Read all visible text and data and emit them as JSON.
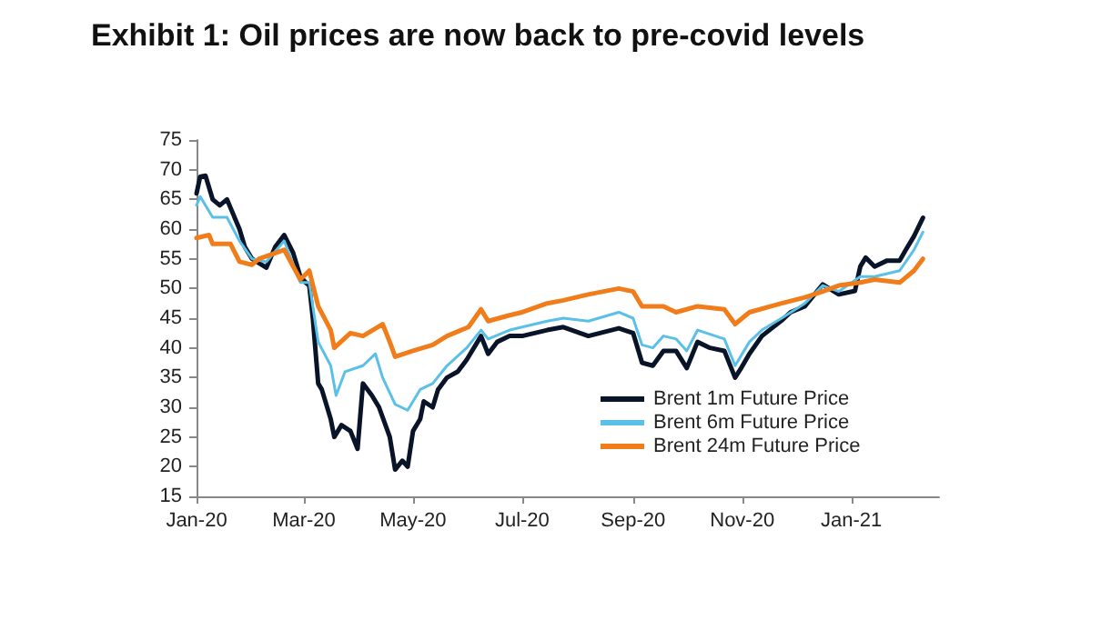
{
  "chart_data": {
    "type": "line",
    "title": "Exhibit 1: Oil prices are now back to pre-covid levels",
    "xlim": [
      "2020-01-01",
      "2021-02-19"
    ],
    "xticks": [
      {
        "value": "2020-01",
        "label": "Jan-20"
      },
      {
        "value": "2020-03",
        "label": "Mar-20"
      },
      {
        "value": "2020-05",
        "label": "May-20"
      },
      {
        "value": "2020-07",
        "label": "Jul-20"
      },
      {
        "value": "2020-09",
        "label": "Sep-20"
      },
      {
        "value": "2020-11",
        "label": "Nov-20"
      },
      {
        "value": "2021-01",
        "label": "Jan-21"
      }
    ],
    "ylim": [
      15,
      75
    ],
    "yticks": [
      15,
      20,
      25,
      30,
      35,
      40,
      45,
      50,
      55,
      60,
      65,
      70,
      75
    ],
    "grid": false,
    "legend": "bottom right",
    "marker": "none",
    "line_style": "solid",
    "series": [
      {
        "name": "Brent 1m Future Price",
        "color": "#0a1428",
        "x": [
          "2020-01-01",
          "2020-01-03",
          "2020-01-06",
          "2020-01-10",
          "2020-01-14",
          "2020-01-18",
          "2020-01-25",
          "2020-01-28",
          "2020-02-01",
          "2020-02-09",
          "2020-02-14",
          "2020-02-19",
          "2020-02-24",
          "2020-02-28",
          "2020-03-02",
          "2020-03-04",
          "2020-03-06",
          "2020-03-09",
          "2020-03-11",
          "2020-03-16",
          "2020-03-18",
          "2020-03-22",
          "2020-03-27",
          "2020-03-31",
          "2020-04-03",
          "2020-04-08",
          "2020-04-12",
          "2020-04-18",
          "2020-04-21",
          "2020-04-25",
          "2020-04-28",
          "2020-05-01",
          "2020-05-05",
          "2020-05-07",
          "2020-05-12",
          "2020-05-15",
          "2020-05-20",
          "2020-05-26",
          "2020-05-31",
          "2020-06-08",
          "2020-06-12",
          "2020-06-17",
          "2020-06-24",
          "2020-07-01",
          "2020-07-15",
          "2020-07-24",
          "2020-08-07",
          "2020-08-24",
          "2020-09-01",
          "2020-09-06",
          "2020-09-12",
          "2020-09-18",
          "2020-09-25",
          "2020-10-01",
          "2020-10-07",
          "2020-10-14",
          "2020-10-22",
          "2020-10-28",
          "2020-10-31",
          "2020-11-05",
          "2020-11-12",
          "2020-11-23",
          "2020-11-28",
          "2020-12-06",
          "2020-12-16",
          "2020-12-25",
          "2021-01-03",
          "2021-01-06",
          "2021-01-09",
          "2021-01-14",
          "2021-01-21",
          "2021-01-28",
          "2021-01-31",
          "2021-02-05",
          "2021-02-10"
        ],
        "values": [
          66,
          68.8,
          69,
          65,
          64,
          65,
          60,
          57,
          55,
          53.5,
          57,
          59,
          56,
          52,
          51,
          50.5,
          45,
          34,
          33,
          28,
          25,
          27,
          26,
          23,
          34,
          32,
          30,
          25,
          19.5,
          21,
          20,
          26,
          28,
          31,
          30,
          33,
          35,
          36,
          38,
          42,
          39,
          41,
          42,
          42,
          43,
          43.5,
          42,
          43.3,
          42.5,
          37.5,
          37,
          39.5,
          39.5,
          36.6,
          41,
          40,
          39.5,
          35,
          36.4,
          39,
          42,
          44.6,
          46,
          47,
          50.7,
          49,
          49.6,
          53.7,
          55.2,
          53.7,
          54.7,
          54.7,
          56.3,
          58.8,
          61.9
        ]
      },
      {
        "name": "Brent 6m Future Price",
        "color": "#5bc0e8",
        "x": [
          "2020-01-01",
          "2020-01-03",
          "2020-01-10",
          "2020-01-18",
          "2020-01-25",
          "2020-02-01",
          "2020-02-09",
          "2020-02-19",
          "2020-02-28",
          "2020-03-04",
          "2020-03-09",
          "2020-03-16",
          "2020-03-19",
          "2020-03-24",
          "2020-04-03",
          "2020-04-10",
          "2020-04-14",
          "2020-04-21",
          "2020-04-28",
          "2020-05-05",
          "2020-05-12",
          "2020-05-20",
          "2020-05-31",
          "2020-06-08",
          "2020-06-12",
          "2020-06-24",
          "2020-07-15",
          "2020-07-24",
          "2020-08-07",
          "2020-08-24",
          "2020-09-01",
          "2020-09-06",
          "2020-09-12",
          "2020-09-18",
          "2020-09-25",
          "2020-10-01",
          "2020-10-07",
          "2020-10-22",
          "2020-10-28",
          "2020-11-05",
          "2020-11-12",
          "2020-11-23",
          "2020-12-06",
          "2020-12-16",
          "2020-12-25",
          "2021-01-06",
          "2021-01-14",
          "2021-01-28",
          "2021-02-05",
          "2021-02-10"
        ],
        "values": [
          64,
          65.5,
          62,
          62,
          58,
          55,
          54.5,
          58,
          51,
          51,
          41,
          37,
          32,
          36,
          37,
          39,
          35,
          30.5,
          29.5,
          33,
          34,
          37,
          40,
          43,
          41.5,
          43,
          44.5,
          45,
          44.5,
          46,
          45,
          40.5,
          40,
          42,
          41.5,
          39.5,
          43,
          41.5,
          37,
          41,
          43,
          45,
          47.5,
          50.5,
          49.5,
          52,
          52,
          53,
          56.5,
          59.5
        ]
      },
      {
        "name": "Brent 24m Future Price",
        "color": "#f07d1a",
        "x": [
          "2020-01-01",
          "2020-01-08",
          "2020-01-10",
          "2020-01-20",
          "2020-01-25",
          "2020-02-01",
          "2020-02-05",
          "2020-02-19",
          "2020-02-28",
          "2020-03-04",
          "2020-03-09",
          "2020-03-16",
          "2020-03-18",
          "2020-03-27",
          "2020-04-03",
          "2020-04-14",
          "2020-04-18",
          "2020-04-21",
          "2020-05-01",
          "2020-05-12",
          "2020-05-20",
          "2020-06-01",
          "2020-06-08",
          "2020-06-12",
          "2020-06-24",
          "2020-07-01",
          "2020-07-15",
          "2020-07-24",
          "2020-08-07",
          "2020-08-24",
          "2020-09-01",
          "2020-09-06",
          "2020-09-18",
          "2020-09-25",
          "2020-10-07",
          "2020-10-22",
          "2020-10-28",
          "2020-11-05",
          "2020-11-23",
          "2020-12-06",
          "2020-12-16",
          "2020-12-25",
          "2021-01-06",
          "2021-01-14",
          "2021-01-28",
          "2021-02-05",
          "2021-02-10"
        ],
        "values": [
          58.5,
          59,
          57.5,
          57.5,
          54.5,
          54,
          55,
          56.5,
          51.5,
          53,
          47,
          43,
          40,
          42.5,
          42,
          44,
          41,
          38.5,
          39.5,
          40.5,
          42,
          43.5,
          46.5,
          44.5,
          45.5,
          46,
          47.5,
          48,
          49,
          50,
          49.5,
          47,
          47,
          46,
          47,
          46.5,
          44,
          46,
          47.5,
          48.5,
          49.5,
          50.5,
          51,
          51.5,
          51,
          53,
          55
        ]
      }
    ]
  }
}
